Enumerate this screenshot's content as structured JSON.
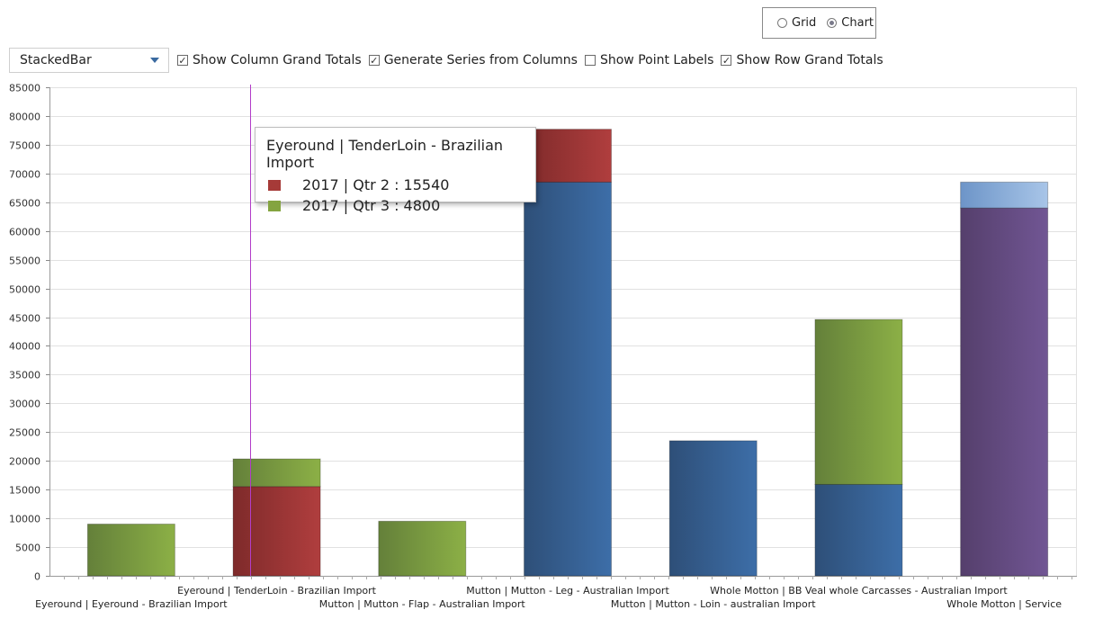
{
  "view_toggle": {
    "options": [
      "Grid",
      "Chart"
    ],
    "selected": "Chart"
  },
  "toolbar": {
    "chart_type": "StackedBar",
    "checkboxes": [
      {
        "label": "Show Column Grand Totals",
        "checked": true
      },
      {
        "label": "Generate Series from Columns",
        "checked": true
      },
      {
        "label": "Show Point Labels",
        "checked": false
      },
      {
        "label": "Show Row Grand Totals",
        "checked": true
      }
    ]
  },
  "tooltip": {
    "title": "Eyeround | TenderLoin - Brazilian Import",
    "rows": [
      {
        "text": "2017 | Qtr 2 : 15540",
        "color": "#a63a38"
      },
      {
        "text": "2017 | Qtr 3 : 4800",
        "color": "#84a440"
      }
    ]
  },
  "chart_data": {
    "type": "bar",
    "stacked": true,
    "ylim": [
      0,
      85000
    ],
    "y_ticks": [
      0,
      5000,
      10000,
      15000,
      20000,
      25000,
      30000,
      35000,
      40000,
      45000,
      50000,
      55000,
      60000,
      65000,
      70000,
      75000,
      80000,
      85000
    ],
    "grid": true,
    "categories": [
      "Eyeround | Eyeround - Brazilian Import",
      "Eyeround | TenderLoin - Brazilian Import",
      "Mutton | Mutton - Flap - Australian Import",
      "Mutton | Mutton - Leg - Australian Import",
      "Mutton | Mutton - Loin - australian Import",
      "Whole Motton | BB Veal whole Carcasses - Australian Import",
      "Whole Motton | Service"
    ],
    "bars": [
      [
        {
          "value": 9000,
          "color": "green"
        }
      ],
      [
        {
          "value": 15540,
          "color": "red"
        },
        {
          "value": 4800,
          "color": "green"
        }
      ],
      [
        {
          "value": 9500,
          "color": "green"
        }
      ],
      [
        {
          "value": 68500,
          "color": "blue"
        },
        {
          "value": 9200,
          "color": "red"
        }
      ],
      [
        {
          "value": 23500,
          "color": "blue"
        }
      ],
      [
        {
          "value": 15900,
          "color": "blue"
        },
        {
          "value": 28700,
          "color": "green"
        }
      ],
      [
        {
          "value": 64000,
          "color": "purple"
        },
        {
          "value": 4500,
          "color": "lightblue"
        }
      ]
    ],
    "colors": {
      "green": [
        "#64803a",
        "#8cb046"
      ],
      "red": [
        "#7e2a2a",
        "#b03e3e"
      ],
      "blue": [
        "#2e4f78",
        "#3d6ea8"
      ],
      "purple": [
        "#553f6c",
        "#715694"
      ],
      "lightblue": [
        "#6d95c8",
        "#a8c5e8"
      ]
    },
    "highlight_category": 1
  }
}
